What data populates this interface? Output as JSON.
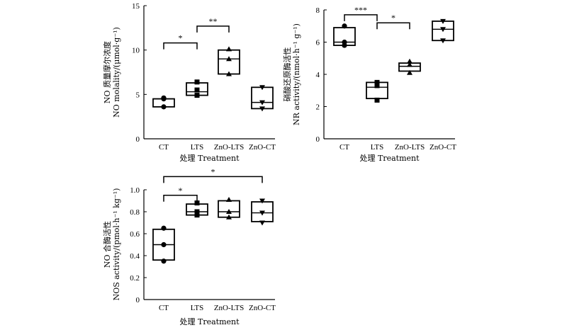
{
  "chart_data": [
    {
      "type": "box",
      "ylabel_line1": "NO 质量摩尔浓度",
      "ylabel_line2": "NO molality/(μmol·g⁻¹)",
      "xlabel": "处理 Treatment",
      "categories": [
        "CT",
        "LTS",
        "ZnO-LTS",
        "ZnO-CT"
      ],
      "ylim": [
        0,
        15
      ],
      "yticks": [
        "0",
        "5",
        "10",
        "15"
      ],
      "boxes": [
        {
          "category": "CT",
          "q1": 3.6,
          "median": 4.5,
          "q3": 4.5,
          "points": [
            3.6,
            4.5,
            4.6
          ],
          "marker": "circle"
        },
        {
          "category": "LTS",
          "q1": 4.9,
          "median": 5.3,
          "q3": 6.3,
          "points": [
            4.9,
            5.5,
            6.4
          ],
          "marker": "square"
        },
        {
          "category": "ZnO-LTS",
          "q1": 7.3,
          "median": 9.0,
          "q3": 10.0,
          "points": [
            7.3,
            9.0,
            10.1
          ],
          "marker": "triangle-up"
        },
        {
          "category": "ZnO-CT",
          "q1": 3.4,
          "median": 4.1,
          "q3": 5.8,
          "points": [
            3.4,
            4.1,
            5.8
          ],
          "marker": "triangle-down"
        }
      ],
      "significance": [
        {
          "from": "CT",
          "to": "LTS",
          "label": "*",
          "y": 10.8
        },
        {
          "from": "LTS",
          "to": "ZnO-LTS",
          "label": "**",
          "y": 12.7
        }
      ]
    },
    {
      "type": "box",
      "ylabel_line1": "硝酸还原酶活性",
      "ylabel_line2": "NR activity/(nmol·h⁻¹ g⁻¹)",
      "xlabel": "处理 Treatment",
      "categories": [
        "CT",
        "LTS",
        "ZnO-LTS",
        "ZnO-CT"
      ],
      "ylim": [
        0,
        8
      ],
      "yticks": [
        "0",
        "2",
        "4",
        "6",
        "8"
      ],
      "boxes": [
        {
          "category": "CT",
          "q1": 5.8,
          "median": 6.0,
          "q3": 6.9,
          "points": [
            5.8,
            6.0,
            7.0
          ],
          "marker": "circle"
        },
        {
          "category": "LTS",
          "q1": 2.5,
          "median": 3.2,
          "q3": 3.5,
          "points": [
            2.4,
            3.3,
            3.5
          ],
          "marker": "square"
        },
        {
          "category": "ZnO-LTS",
          "q1": 4.2,
          "median": 4.5,
          "q3": 4.7,
          "points": [
            4.1,
            4.6,
            4.8
          ],
          "marker": "triangle-up"
        },
        {
          "category": "ZnO-CT",
          "q1": 6.1,
          "median": 6.8,
          "q3": 7.3,
          "points": [
            6.1,
            6.8,
            7.3
          ],
          "marker": "triangle-down"
        }
      ],
      "significance": [
        {
          "from": "CT",
          "to": "LTS",
          "label": "***",
          "y": 7.7
        },
        {
          "from": "LTS",
          "to": "ZnO-LTS",
          "label": "*",
          "y": 7.2
        }
      ]
    },
    {
      "type": "box",
      "ylabel_line1": "NO 合酶活性",
      "ylabel_line2": "NOS activity/(pmol·h⁻¹ kg⁻¹)",
      "xlabel": "处理 Treatment",
      "categories": [
        "CT",
        "LTS",
        "ZnO-LTS",
        "ZnO-CT"
      ],
      "ylim": [
        0,
        1.0
      ],
      "yticks": [
        "0",
        "0.2",
        "0.4",
        "0.6",
        "0.8",
        "1.0"
      ],
      "boxes": [
        {
          "category": "CT",
          "q1": 0.36,
          "median": 0.5,
          "q3": 0.64,
          "points": [
            0.35,
            0.5,
            0.65
          ],
          "marker": "circle"
        },
        {
          "category": "LTS",
          "q1": 0.77,
          "median": 0.8,
          "q3": 0.87,
          "points": [
            0.77,
            0.8,
            0.88
          ],
          "marker": "square"
        },
        {
          "category": "ZnO-LTS",
          "q1": 0.75,
          "median": 0.8,
          "q3": 0.9,
          "points": [
            0.75,
            0.8,
            0.91
          ],
          "marker": "triangle-up"
        },
        {
          "category": "ZnO-CT",
          "q1": 0.71,
          "median": 0.79,
          "q3": 0.89,
          "points": [
            0.7,
            0.79,
            0.9
          ],
          "marker": "triangle-down"
        }
      ],
      "significance": [
        {
          "from": "CT",
          "to": "LTS",
          "label": "*",
          "y": 0.95
        },
        {
          "from": "CT",
          "to": "ZnO-CT",
          "label": "*",
          "y": 1.12
        }
      ]
    }
  ]
}
